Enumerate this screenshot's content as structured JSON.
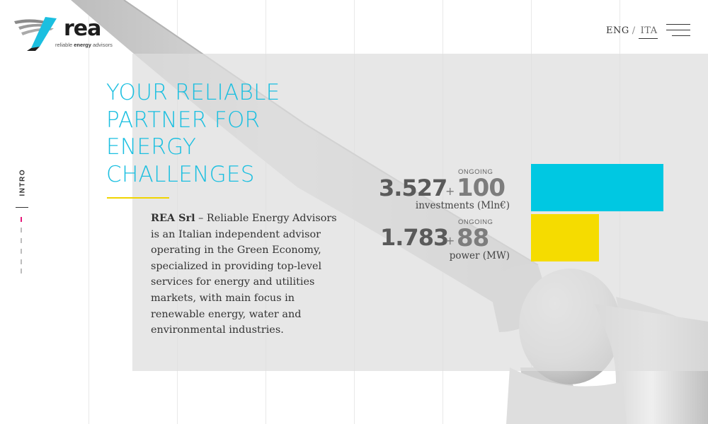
{
  "brand": {
    "name": "rea",
    "tagline_prefix": "reliable ",
    "tagline_bold": "energy",
    "tagline_suffix": " advisors"
  },
  "header": {
    "lang_active": "ENG",
    "lang_separator": "/",
    "lang_other": "ITA",
    "menu_icon": "hamburger-icon"
  },
  "side_nav": {
    "section_label": "INTRO",
    "sections_total": 6,
    "active_index": 0
  },
  "hero": {
    "title_lines": [
      "YOUR RELIABLE",
      "PARTNER FOR",
      "ENERGY",
      "CHALLENGES"
    ],
    "body_bold": "REA Srl",
    "body_text": " – Reliable Energy Advisors is an Italian independent advisor operating in the Green Economy, specialized in providing top-level services for energy and utilities markets, with main focus in renewable energy, water and environmental industries."
  },
  "stats": [
    {
      "value": "3.527",
      "plus": "+",
      "ongoing_label": "ONGOING",
      "ongoing_value": "100",
      "caption": "investments (Mln€)",
      "bar_color": "#00c8e2"
    },
    {
      "value": "1.783",
      "plus": "+",
      "ongoing_label": "ONGOING",
      "ongoing_value": "88",
      "caption": "power (MW)",
      "bar_color": "#f5dc00"
    }
  ],
  "colors": {
    "accent_cyan": "#1bbfe0",
    "accent_yellow": "#f0d400",
    "active_pink": "#e6187a"
  }
}
